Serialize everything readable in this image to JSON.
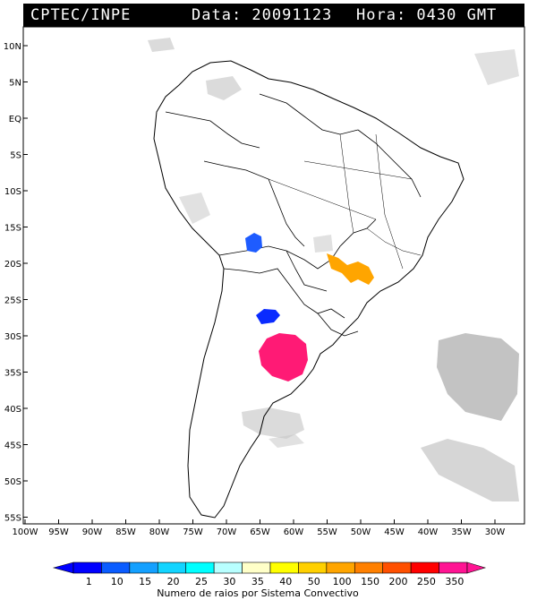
{
  "header": {
    "source": "CPTEC/INPE",
    "date": "Data: 20091123",
    "time": "Hora: 0430 GMT"
  },
  "lat_ticks": [
    "10N",
    "5N",
    "EQ",
    "5S",
    "10S",
    "15S",
    "20S",
    "25S",
    "30S",
    "35S",
    "40S",
    "45S",
    "50S",
    "55S"
  ],
  "lon_ticks": [
    "100W",
    "95W",
    "90W",
    "85W",
    "80W",
    "75W",
    "70W",
    "65W",
    "60W",
    "55W",
    "50W",
    "45W",
    "40W",
    "35W",
    "30W"
  ],
  "legend": {
    "title": "Numero de raios por Sistema Convectivo",
    "values": [
      "1",
      "10",
      "15",
      "20",
      "25",
      "30",
      "35",
      "40",
      "50",
      "100",
      "150",
      "200",
      "250",
      "350"
    ],
    "colors": [
      "#0000ff",
      "#0a5cff",
      "#14a0ff",
      "#12d4ff",
      "#00ffff",
      "#b8ffff",
      "#ffffc8",
      "#ffff00",
      "#ffd000",
      "#ffa500",
      "#ff8000",
      "#ff5000",
      "#ff0000",
      "#ff1493"
    ]
  },
  "systems": [
    {
      "name": "cell-bolivia",
      "color": "#1e5cff"
    },
    {
      "name": "cell-paraguay-south",
      "color": "#0a2bff"
    },
    {
      "name": "cell-brazil-southeast",
      "color": "#ffa500"
    },
    {
      "name": "cell-argentina",
      "color": "#ff1a75"
    }
  ]
}
